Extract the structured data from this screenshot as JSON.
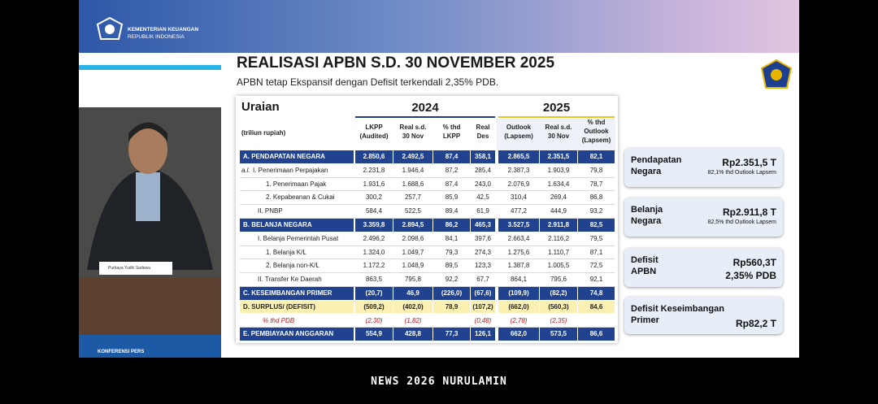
{
  "header": {
    "org_line1": "KEMENTERIAN KEUANGAN",
    "org_line2": "REPUBLIK INDONESIA"
  },
  "video": {
    "nameplate": "Purbaya Yudhi Sadewa",
    "event": "KONFERENSI PERS"
  },
  "slide": {
    "title": "REALISASI APBN S.D. 30 NOVEMBER 2025",
    "subtitle": "APBN tetap Ekspansif dengan Defisit terkendali 2,35% PDB."
  },
  "table": {
    "title": "Uraian",
    "unit": "(triliun rupiah)",
    "groups": [
      "2024",
      "2025"
    ],
    "columns": [
      [
        "LKPP",
        "(Audited)"
      ],
      [
        "Real s.d.",
        "30 Nov"
      ],
      [
        "% thd",
        "LKPP"
      ],
      [
        "Real",
        "Des"
      ],
      [
        "Outlook",
        "(Lapsem)"
      ],
      [
        "Real s.d.",
        "30 Nov"
      ],
      [
        "% thd",
        "Outlook",
        "(Lapsem)"
      ]
    ],
    "rows": [
      {
        "label": "A. PENDAPATAN NEGARA",
        "values": [
          "2.850,6",
          "2.492,5",
          "87,4",
          "358,1",
          "2.865,5",
          "2.351,5",
          "82,1"
        ]
      },
      {
        "prefix": "a.l.",
        "label": "I. Penerimaan Perpajakan",
        "values": [
          "2.231,8",
          "1.946,4",
          "87,2",
          "285,4",
          "2.387,3",
          "1.903,9",
          "79,8"
        ]
      },
      {
        "label": "1. Penerimaan Pajak",
        "values": [
          "1.931,6",
          "1.688,6",
          "87,4",
          "243,0",
          "2.076,9",
          "1.634,4",
          "78,7"
        ]
      },
      {
        "label": "2. Kepabeanan & Cukai",
        "values": [
          "300,2",
          "257,7",
          "85,9",
          "42,5",
          "310,4",
          "269,4",
          "86,8"
        ]
      },
      {
        "label": "II. PNBP",
        "values": [
          "584,4",
          "522,5",
          "89,4",
          "61,9",
          "477,2",
          "444,9",
          "93,2"
        ]
      },
      {
        "label": "B. BELANJA NEGARA",
        "values": [
          "3.359,8",
          "2.894,5",
          "86,2",
          "465,3",
          "3.527,5",
          "2.911,8",
          "82,5"
        ]
      },
      {
        "label": "I. Belanja Pemerintah Pusat",
        "values": [
          "2.496,2",
          "2.098,6",
          "84,1",
          "397,6",
          "2.663,4",
          "2.116,2",
          "79,5"
        ]
      },
      {
        "label": "1. Belanja K/L",
        "values": [
          "1.324,0",
          "1.049,7",
          "79,3",
          "274,3",
          "1.275,6",
          "1.110,7",
          "87,1"
        ]
      },
      {
        "label": "2. Belanja non-K/L",
        "values": [
          "1.172,2",
          "1.048,9",
          "89,5",
          "123,3",
          "1.387,8",
          "1.005,5",
          "72,5"
        ]
      },
      {
        "label": "II. Transfer Ke Daerah",
        "values": [
          "863,5",
          "795,8",
          "92,2",
          "67,7",
          "864,1",
          "795,6",
          "92,1"
        ]
      },
      {
        "label": "C. KESEIMBANGAN PRIMER",
        "values": [
          "(20,7)",
          "46,9",
          "(226,0)",
          "(67,6)",
          "(109,9)",
          "(82,2)",
          "74,8"
        ]
      },
      {
        "label": "D. SURPLUS/ (DEFISIT)",
        "values": [
          "(509,2)",
          "(402,0)",
          "78,9",
          "(107,2)",
          "(662,0)",
          "(560,3)",
          "84,6"
        ]
      },
      {
        "label": "% thd PDB",
        "values": [
          "(2,30)",
          "(1,82)",
          null,
          "(0,48)",
          "(2,78)",
          "(2,35)",
          null
        ]
      },
      {
        "label": "E. PEMBIAYAAN ANGGARAN",
        "values": [
          "554,9",
          "428,8",
          "77,3",
          "126,1",
          "662,0",
          "573,5",
          "86,6"
        ]
      }
    ]
  },
  "cards": [
    {
      "label": [
        "Pendapatan",
        "Negara"
      ],
      "value": "Rp2.351,5 T",
      "note": "82,1% thd Outlook Lapsem"
    },
    {
      "label": [
        "Belanja",
        "Negara"
      ],
      "value": "Rp2.911,8 T",
      "note": "82,5% thd Outlook Lapsem"
    },
    {
      "label": [
        "Defisit",
        "APBN"
      ],
      "value": "Rp560,3T",
      "note": "2,35% PDB"
    },
    {
      "label": [
        "Defisit Keseimbangan",
        "Primer"
      ],
      "value": "Rp82,2 T"
    }
  ],
  "footer": {
    "caption": "NEWS 2026 NURULAMIN"
  }
}
